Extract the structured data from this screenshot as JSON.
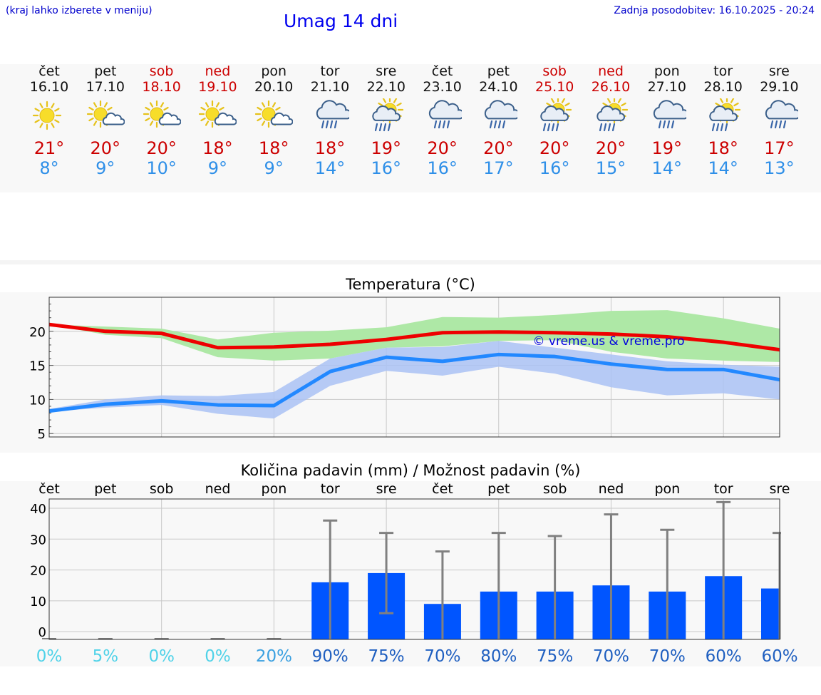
{
  "header": {
    "hint": "(kraj lahko izberete v meniju)",
    "title": "Umag 14 dni",
    "updated": "Zadnja posodobitev: 16.10.2025 - 20:24"
  },
  "colors": {
    "max_line": "#ee0000",
    "min_line": "#2288ff",
    "max_band": "#aee8a6",
    "min_band": "#aac2f4",
    "bar": "#0055ff",
    "weekend": "#cc0000",
    "pct_low": "#4fd2e8",
    "pct_high": "#1f5fc0"
  },
  "days": [
    {
      "name": "čet",
      "date": "16.10",
      "weekend": false,
      "icon": "sun-icon",
      "tmax": "21°",
      "tmin": "8°"
    },
    {
      "name": "pet",
      "date": "17.10",
      "weekend": false,
      "icon": "sun-cloud-icon",
      "tmax": "20°",
      "tmin": "9°"
    },
    {
      "name": "sob",
      "date": "18.10",
      "weekend": true,
      "icon": "sun-cloud-icon",
      "tmax": "20°",
      "tmin": "10°"
    },
    {
      "name": "ned",
      "date": "19.10",
      "weekend": true,
      "icon": "sun-cloud-icon",
      "tmax": "18°",
      "tmin": "9°"
    },
    {
      "name": "pon",
      "date": "20.10",
      "weekend": false,
      "icon": "sun-cloud-icon",
      "tmax": "18°",
      "tmin": "9°"
    },
    {
      "name": "tor",
      "date": "21.10",
      "weekend": false,
      "icon": "rain-cloud-icon",
      "tmax": "18°",
      "tmin": "14°"
    },
    {
      "name": "sre",
      "date": "22.10",
      "weekend": false,
      "icon": "sun-rain-icon",
      "tmax": "19°",
      "tmin": "16°"
    },
    {
      "name": "čet",
      "date": "23.10",
      "weekend": false,
      "icon": "rain-cloud-icon",
      "tmax": "20°",
      "tmin": "16°"
    },
    {
      "name": "pet",
      "date": "24.10",
      "weekend": false,
      "icon": "rain-cloud-icon",
      "tmax": "20°",
      "tmin": "17°"
    },
    {
      "name": "sob",
      "date": "25.10",
      "weekend": true,
      "icon": "sun-rain-icon",
      "tmax": "20°",
      "tmin": "16°"
    },
    {
      "name": "ned",
      "date": "26.10",
      "weekend": true,
      "icon": "sun-rain-icon",
      "tmax": "20°",
      "tmin": "15°"
    },
    {
      "name": "pon",
      "date": "27.10",
      "weekend": false,
      "icon": "rain-cloud-icon",
      "tmax": "19°",
      "tmin": "14°"
    },
    {
      "name": "tor",
      "date": "28.10",
      "weekend": false,
      "icon": "sun-rain-icon",
      "tmax": "18°",
      "tmin": "14°"
    },
    {
      "name": "sre",
      "date": "29.10",
      "weekend": false,
      "icon": "rain-cloud-icon",
      "tmax": "17°",
      "tmin": "13°"
    }
  ],
  "chart_data": [
    {
      "type": "line",
      "title": "Temperatura (°C)",
      "watermark": "© vreme.us & vreme.pro",
      "x": [
        "16.10",
        "17.10",
        "18.10",
        "19.10",
        "20.10",
        "21.10",
        "22.10",
        "23.10",
        "24.10",
        "25.10",
        "26.10",
        "27.10",
        "28.10",
        "29.10"
      ],
      "ylim": [
        4.5,
        25
      ],
      "yticks": [
        5,
        10,
        15,
        20
      ],
      "grid": true,
      "series": [
        {
          "values": [
            21.0,
            20.0,
            19.7,
            17.6,
            17.7,
            18.1,
            18.8,
            19.8,
            19.9,
            19.8,
            19.6,
            19.2,
            18.4,
            17.3
          ],
          "band_low": [
            21.0,
            19.5,
            19.0,
            16.2,
            15.7,
            16.0,
            17.6,
            17.8,
            18.6,
            18.7,
            17.0,
            16.0,
            15.7,
            15.5
          ],
          "band_high": [
            21.0,
            20.7,
            20.4,
            18.8,
            19.8,
            20.1,
            20.6,
            22.1,
            22.0,
            22.4,
            23.0,
            23.1,
            21.9,
            20.4
          ]
        },
        {
          "values": [
            8.3,
            9.3,
            9.8,
            9.2,
            9.1,
            14.1,
            16.2,
            15.6,
            16.6,
            16.3,
            15.2,
            14.4,
            14.4,
            12.9
          ],
          "band_low": [
            8.2,
            8.8,
            9.2,
            7.9,
            7.2,
            12.0,
            14.2,
            13.5,
            14.8,
            13.8,
            11.8,
            10.6,
            10.9,
            10.0
          ],
          "band_high": [
            8.6,
            10.0,
            10.6,
            10.5,
            11.1,
            16.0,
            17.6,
            17.7,
            18.6,
            17.6,
            16.6,
            15.6,
            15.1,
            14.8
          ]
        }
      ]
    },
    {
      "type": "bar",
      "title": "Količina padavin (mm) / Možnost padavin (%)",
      "categories": [
        "čet",
        "pet",
        "sob",
        "ned",
        "pon",
        "tor",
        "sre",
        "čet",
        "pet",
        "sob",
        "ned",
        "pon",
        "tor",
        "sre"
      ],
      "yticks": [
        0,
        10,
        20,
        30,
        40
      ],
      "ylim": [
        -2.5,
        43
      ],
      "grid": true,
      "values": [
        0,
        0,
        0,
        0,
        0,
        16,
        19,
        9,
        13,
        13,
        15,
        13,
        18,
        14
      ],
      "err_low": [
        0,
        0,
        0,
        0,
        0,
        0,
        6,
        0,
        0,
        0,
        0,
        0,
        0,
        0
      ],
      "err_high": [
        0,
        0,
        0,
        0,
        0,
        36,
        32,
        26,
        32,
        31,
        38,
        33,
        42,
        32
      ],
      "percent_labels": [
        "0%",
        "5%",
        "0%",
        "0%",
        "20%",
        "90%",
        "75%",
        "70%",
        "80%",
        "75%",
        "70%",
        "70%",
        "60%",
        "60%"
      ],
      "percent_values": [
        0,
        5,
        0,
        0,
        20,
        90,
        75,
        70,
        80,
        75,
        70,
        70,
        60,
        60
      ]
    }
  ]
}
